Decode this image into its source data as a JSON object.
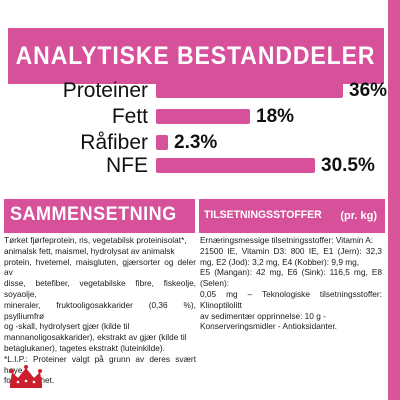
{
  "header": {
    "title": "ANALYTISKE BESTANDDELER"
  },
  "analysis": [
    {
      "label": "Proteiner",
      "value": "36%",
      "fraction": 0.36
    },
    {
      "label": "Fett",
      "value": "18%",
      "fraction": 0.18
    },
    {
      "label": "Råfiber",
      "value": "2.3%",
      "fraction": 0.023
    },
    {
      "label": "NFE",
      "value": "30.5%",
      "fraction": 0.305
    }
  ],
  "composition": {
    "title": "SAMMENSETNING",
    "lines": [
      "Tørket fjørfeprotein, ris, vegetabilsk proteinisolat*,",
      "animalsk fett, maismel, hydrolysat av animalsk",
      "protein, hvetemel, maisgluten, gjærsorter og deler av",
      "disse, betefiber, vegetabilske fibre, fiskeolje, soyaolje,",
      "mineraler, fruktooligosakkarider (0,36 %), psylliumfrø",
      "og -skall, hydrolysert gjær (kilde til",
      "mannanoligosakkarider), ekstrakt av gjær (kilde til",
      "betaglukaner), tagetes ekstrakt (luteinkilde).",
      "*L.I.P.: Proteiner valgt på grunn av deres svært høye",
      "fordøyelighet."
    ]
  },
  "additives": {
    "title": "TILSETNINGSSTOFFER",
    "unit": "(pr. kg)",
    "lines": [
      "Ernæringsmessige tilsetningsstoffer: Vitamin A:",
      "21500 IE, Vitamin D3: 800 IE, E1 (Jern): 32,3 mg, E2 (Jod): 3,2 mg, E4 (Kobber): 9,9 mg,",
      "E5 (Mangan): 42 mg, E6 (Sink): 116,5 mg, E8 (Selen):",
      "0,05 mg – Teknologiske tilsetningsstoffer: Klinoptilolitt",
      "av sedimentær opprinnelse: 10 g -",
      "Konserveringsmidler - Antioksidanter."
    ]
  },
  "colors": {
    "accent": "#d6509a",
    "strip": "#d9559a"
  },
  "logo": {
    "icon": "royal-canin-crown-logo"
  }
}
